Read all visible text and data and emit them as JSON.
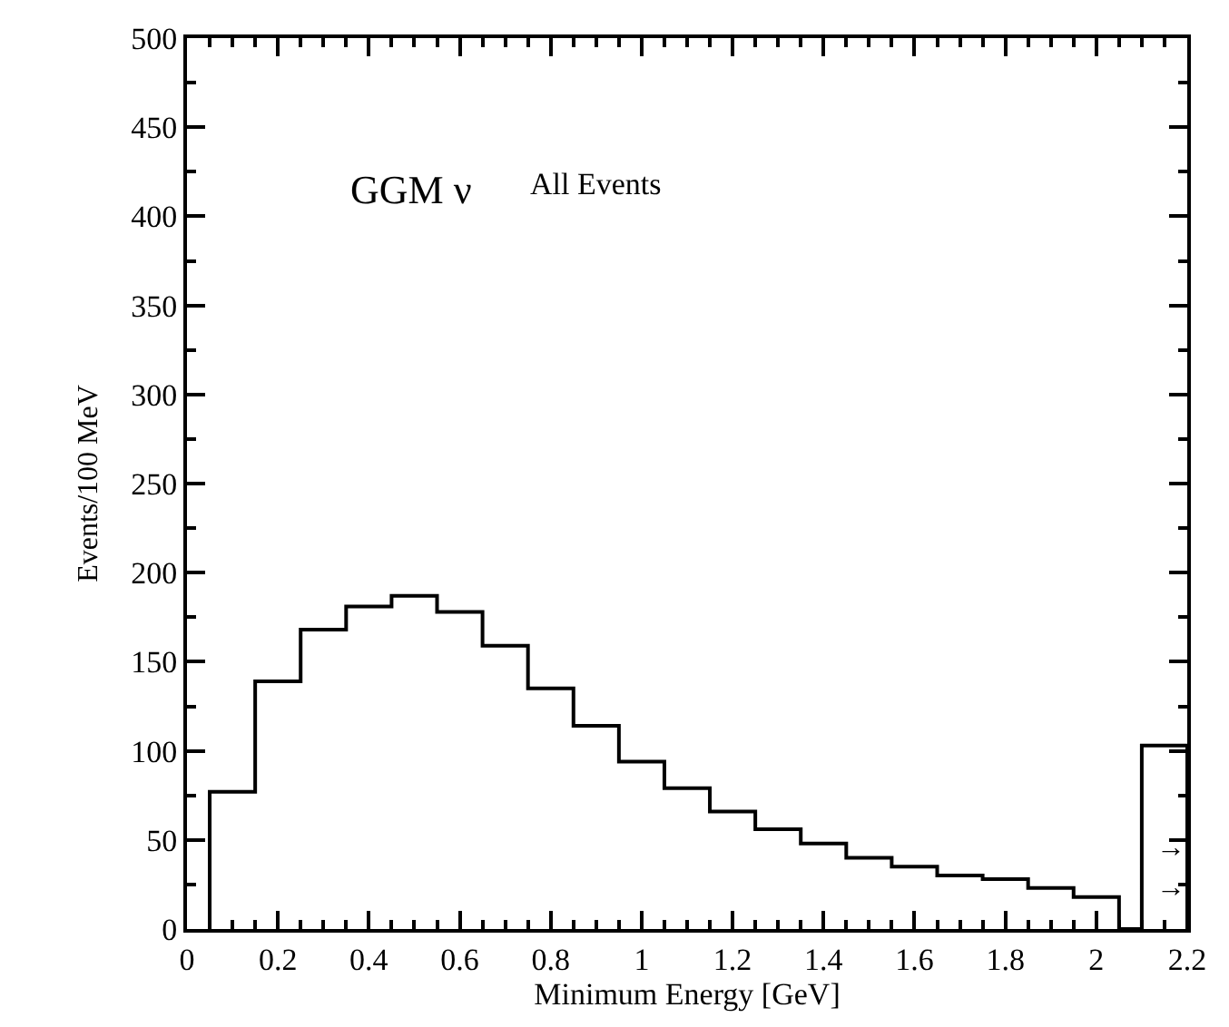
{
  "chart_data": {
    "type": "histogram",
    "xlabel": "Minimum Energy [GeV]",
    "ylabel": "Events/100 MeV",
    "bins": [
      0.05,
      0.15,
      0.25,
      0.35,
      0.45,
      0.55,
      0.65,
      0.75,
      0.85,
      0.95,
      1.05,
      1.15,
      1.25,
      1.35,
      1.45,
      1.55,
      1.65,
      1.75,
      1.85,
      1.95,
      2.05,
      2.1,
      2.2
    ],
    "values": [
      77,
      139,
      168,
      181,
      187,
      178,
      159,
      135,
      114,
      94,
      79,
      66,
      56,
      48,
      40,
      35,
      30,
      28,
      23,
      18,
      0,
      103
    ],
    "color": "#000000",
    "xlim": [
      0,
      2.2
    ],
    "xticks": [
      0,
      0.2,
      0.4,
      0.6,
      0.8,
      1,
      1.2,
      1.4,
      1.6,
      1.8,
      2,
      2.2
    ],
    "ylim": [
      0,
      500
    ],
    "yticks": [
      0,
      50,
      100,
      150,
      200,
      250,
      300,
      350,
      400,
      450,
      500
    ],
    "annotations": [
      "GGM ν",
      "All Events",
      "→",
      "→"
    ]
  }
}
